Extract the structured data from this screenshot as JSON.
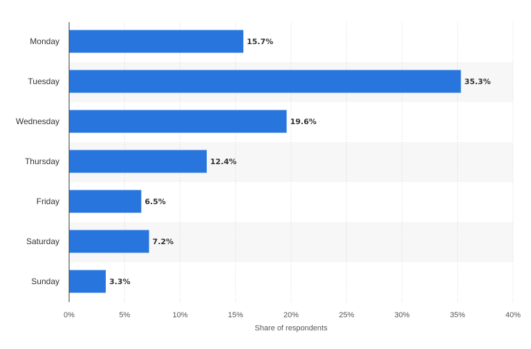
{
  "chart_data": {
    "type": "bar",
    "orientation": "horizontal",
    "categories": [
      "Monday",
      "Tuesday",
      "Wednesday",
      "Thursday",
      "Friday",
      "Saturday",
      "Sunday"
    ],
    "values": [
      15.7,
      35.3,
      19.6,
      12.4,
      6.5,
      7.2,
      3.3
    ],
    "value_labels": [
      "15.7%",
      "35.3%",
      "19.6%",
      "12.4%",
      "6.5%",
      "7.2%",
      "3.3%"
    ],
    "xlabel": "Share of respondents",
    "ylabel": "",
    "xlim": [
      0,
      40
    ],
    "x_ticks": [
      0,
      5,
      10,
      15,
      20,
      25,
      30,
      35,
      40
    ],
    "x_tick_labels": [
      "0%",
      "5%",
      "10%",
      "15%",
      "20%",
      "25%",
      "30%",
      "35%",
      "40%"
    ],
    "grid": true,
    "bar_color": "#2876DD",
    "band_color": "#F7F7F7"
  }
}
